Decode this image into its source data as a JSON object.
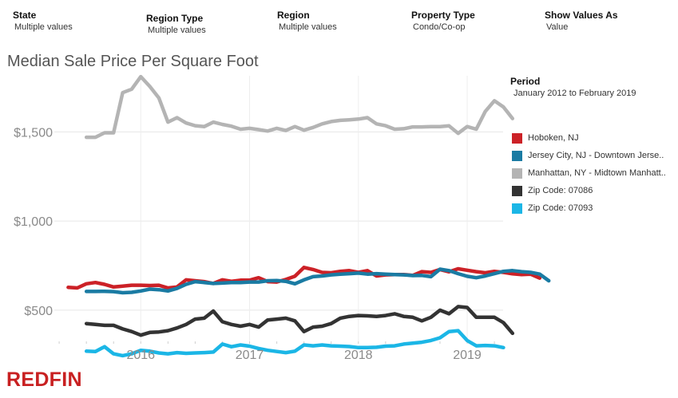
{
  "filters": [
    {
      "label": "State",
      "value": "Multiple values"
    },
    {
      "label": "Region Type",
      "value": "Multiple values"
    },
    {
      "label": "Region",
      "value": "Multiple values"
    },
    {
      "label": "Property Type",
      "value": "Condo/Co-op"
    },
    {
      "label": "Show Values As",
      "value": "Value"
    }
  ],
  "title": "Median Sale Price Per Square Foot",
  "period": {
    "label": "Period",
    "value": "January 2012 to February 2019"
  },
  "logo": {
    "text": "REDFIN",
    "color": "#c82021"
  },
  "chart_data": {
    "type": "line",
    "title": "Median Sale Price Per Square Foot",
    "xlabel": "",
    "ylabel": "",
    "x_range": [
      2015.22,
      2019.33
    ],
    "ylim": [
      325,
      1815
    ],
    "y_ticks": [
      {
        "value": 500,
        "label": "$500"
      },
      {
        "value": 1000,
        "label": "$1,000"
      },
      {
        "value": 1500,
        "label": "$1,500"
      }
    ],
    "x_ticks": [
      {
        "value": 2016,
        "label": "2016"
      },
      {
        "value": 2017,
        "label": "2017"
      },
      {
        "value": 2018,
        "label": "2018"
      },
      {
        "value": 2019,
        "label": "2019"
      }
    ],
    "grid": true,
    "legend_position": "right",
    "series": [
      {
        "name": "Hoboken, NJ",
        "color": "#cc2127",
        "x_start": 2015.333,
        "step": 0.08333,
        "values": [
          628,
          625,
          648,
          655,
          645,
          630,
          635,
          640,
          640,
          638,
          640,
          625,
          630,
          670,
          665,
          660,
          650,
          670,
          662,
          668,
          668,
          682,
          660,
          658,
          672,
          690,
          740,
          728,
          712,
          710,
          718,
          722,
          712,
          722,
          692,
          698,
          700,
          700,
          695,
          716,
          712,
          728,
          715,
          732,
          724,
          716,
          710,
          718,
          712,
          704,
          700,
          702,
          680
        ]
      },
      {
        "name": "Jersey City, NJ - Downtown Jerse..",
        "color": "#1a7ba3",
        "x_start": 2015.5,
        "step": 0.08333,
        "values": [
          605,
          605,
          606,
          604,
          598,
          600,
          608,
          618,
          615,
          608,
          622,
          645,
          660,
          655,
          650,
          652,
          655,
          655,
          658,
          658,
          665,
          666,
          662,
          648,
          670,
          688,
          692,
          698,
          702,
          705,
          708,
          702,
          705,
          702,
          700,
          698,
          694,
          695,
          688,
          730,
          722,
          705,
          690,
          682,
          692,
          705,
          718,
          722,
          716,
          712,
          702,
          665
        ]
      },
      {
        "name": "Manhattan, NY - Midtown Manhatt..",
        "color": "#b4b4b4",
        "x_start": 2015.5,
        "step": 0.08333,
        "values": [
          1470,
          1470,
          1495,
          1495,
          1720,
          1740,
          1810,
          1755,
          1690,
          1555,
          1580,
          1550,
          1535,
          1530,
          1555,
          1542,
          1532,
          1515,
          1520,
          1513,
          1505,
          1520,
          1508,
          1530,
          1510,
          1525,
          1545,
          1558,
          1565,
          1568,
          1572,
          1580,
          1545,
          1535,
          1515,
          1518,
          1528,
          1528,
          1530,
          1530,
          1534,
          1492,
          1530,
          1515,
          1615,
          1675,
          1640,
          1575
        ]
      },
      {
        "name": "Zip Code: 07086",
        "color": "#333333",
        "x_start": 2015.5,
        "step": 0.08333,
        "values": [
          425,
          420,
          415,
          415,
          395,
          380,
          360,
          375,
          378,
          385,
          400,
          420,
          450,
          455,
          495,
          435,
          420,
          410,
          420,
          405,
          445,
          450,
          455,
          440,
          380,
          405,
          410,
          425,
          455,
          465,
          470,
          468,
          465,
          470,
          480,
          465,
          460,
          440,
          460,
          500,
          480,
          520,
          515,
          460,
          460,
          460,
          430,
          370
        ]
      },
      {
        "name": "Zip Code: 07093",
        "color": "#1bb6e6",
        "x_start": 2015.5,
        "step": 0.08333,
        "values": [
          270,
          268,
          295,
          255,
          245,
          255,
          275,
          270,
          260,
          255,
          262,
          258,
          260,
          262,
          265,
          310,
          295,
          305,
          298,
          285,
          275,
          268,
          262,
          270,
          305,
          300,
          305,
          300,
          298,
          296,
          290,
          290,
          292,
          298,
          300,
          310,
          315,
          320,
          330,
          345,
          380,
          385,
          330,
          300,
          302,
          300,
          290
        ]
      }
    ]
  }
}
